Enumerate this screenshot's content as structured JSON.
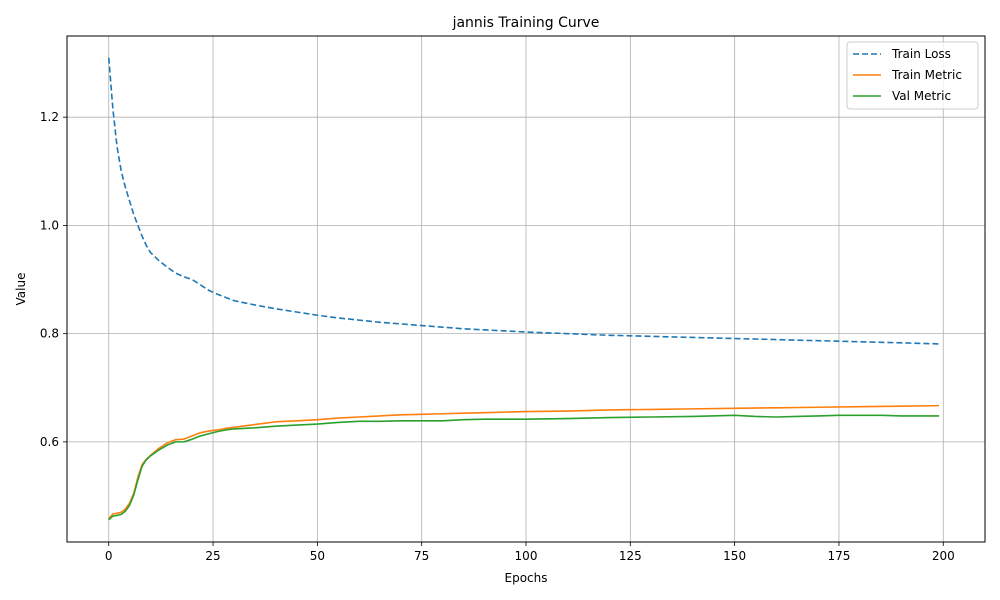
{
  "chart_data": {
    "type": "line",
    "title": "jannis Training Curve",
    "xlabel": "Epochs",
    "ylabel": "Value",
    "xlim": [
      -10,
      210
    ],
    "ylim": [
      0.415,
      1.35
    ],
    "xticks": [
      0,
      25,
      50,
      75,
      100,
      125,
      150,
      175,
      200
    ],
    "yticks": [
      0.6,
      0.8,
      1.0,
      1.2
    ],
    "grid": true,
    "legend_position": "top-right",
    "series": [
      {
        "name": "Train Loss",
        "color": "#1f77b4",
        "dash": true,
        "x": [
          0,
          1,
          2,
          3,
          4,
          5,
          6,
          7,
          8,
          9,
          10,
          12,
          14,
          16,
          18,
          20,
          22,
          24,
          26,
          28,
          30,
          35,
          40,
          45,
          50,
          55,
          60,
          65,
          70,
          75,
          80,
          85,
          90,
          95,
          100,
          110,
          120,
          130,
          140,
          150,
          160,
          170,
          180,
          190,
          199
        ],
        "y": [
          1.31,
          1.215,
          1.145,
          1.1,
          1.07,
          1.045,
          1.02,
          1.0,
          0.98,
          0.963,
          0.95,
          0.935,
          0.923,
          0.912,
          0.905,
          0.9,
          0.89,
          0.88,
          0.873,
          0.867,
          0.861,
          0.853,
          0.846,
          0.84,
          0.834,
          0.829,
          0.825,
          0.821,
          0.818,
          0.815,
          0.812,
          0.809,
          0.807,
          0.805,
          0.803,
          0.8,
          0.797,
          0.795,
          0.793,
          0.791,
          0.789,
          0.787,
          0.785,
          0.783,
          0.781
        ]
      },
      {
        "name": "Train Metric",
        "color": "#ff7f0e",
        "dash": false,
        "x": [
          0,
          1,
          2,
          3,
          4,
          5,
          6,
          7,
          8,
          9,
          10,
          12,
          14,
          16,
          18,
          20,
          22,
          24,
          26,
          28,
          30,
          35,
          40,
          45,
          50,
          55,
          60,
          65,
          70,
          75,
          80,
          85,
          90,
          95,
          100,
          110,
          120,
          130,
          140,
          150,
          160,
          170,
          180,
          190,
          199
        ],
        "y": [
          0.458,
          0.467,
          0.468,
          0.47,
          0.476,
          0.487,
          0.505,
          0.535,
          0.558,
          0.568,
          0.575,
          0.588,
          0.598,
          0.604,
          0.605,
          0.611,
          0.617,
          0.62,
          0.622,
          0.625,
          0.627,
          0.632,
          0.637,
          0.639,
          0.641,
          0.644,
          0.646,
          0.648,
          0.65,
          0.651,
          0.652,
          0.653,
          0.654,
          0.655,
          0.656,
          0.657,
          0.659,
          0.66,
          0.661,
          0.662,
          0.663,
          0.664,
          0.665,
          0.666,
          0.667
        ]
      },
      {
        "name": "Val Metric",
        "color": "#2ca02c",
        "dash": false,
        "x": [
          0,
          1,
          2,
          3,
          4,
          5,
          6,
          7,
          8,
          9,
          10,
          12,
          14,
          16,
          18,
          20,
          22,
          24,
          26,
          28,
          30,
          35,
          40,
          45,
          50,
          55,
          60,
          65,
          70,
          75,
          80,
          85,
          90,
          95,
          100,
          110,
          120,
          130,
          140,
          150,
          155,
          160,
          165,
          170,
          175,
          180,
          185,
          190,
          195,
          199
        ],
        "y": [
          0.456,
          0.463,
          0.464,
          0.466,
          0.472,
          0.483,
          0.502,
          0.53,
          0.555,
          0.567,
          0.574,
          0.585,
          0.594,
          0.6,
          0.6,
          0.605,
          0.611,
          0.615,
          0.619,
          0.622,
          0.624,
          0.626,
          0.629,
          0.631,
          0.633,
          0.636,
          0.638,
          0.638,
          0.639,
          0.639,
          0.639,
          0.641,
          0.642,
          0.642,
          0.642,
          0.643,
          0.645,
          0.646,
          0.647,
          0.649,
          0.647,
          0.646,
          0.647,
          0.648,
          0.649,
          0.649,
          0.649,
          0.648,
          0.648,
          0.648
        ]
      }
    ]
  }
}
